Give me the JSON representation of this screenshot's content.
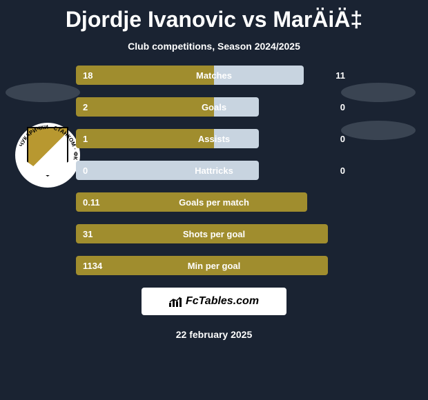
{
  "title": "Djordje Ivanovic vs MarÄiÄ‡",
  "subtitle": "Club competitions, Season 2024/2025",
  "date": "22 february 2025",
  "branding": "FcTables.com",
  "colors": {
    "background": "#1a2332",
    "bar_primary": "#a08d2e",
    "bar_secondary": "#c8d4e0",
    "text": "#ffffff",
    "ellipse": "#3a4452"
  },
  "bars": [
    {
      "label": "Matches",
      "left_value": "18",
      "right_value": "11",
      "left_width": 200,
      "right_width": 130,
      "left_color": "#a08d2e",
      "right_color": "#c8d4e0"
    },
    {
      "label": "Goals",
      "left_value": "2",
      "right_value": "0",
      "left_width": 200,
      "right_width": 65,
      "left_color": "#a08d2e",
      "right_color": "#c8d4e0"
    },
    {
      "label": "Assists",
      "left_value": "1",
      "right_value": "0",
      "left_width": 200,
      "right_width": 65,
      "left_color": "#a08d2e",
      "right_color": "#c8d4e0"
    },
    {
      "label": "Hattricks",
      "left_value": "0",
      "right_value": "0",
      "left_width": 200,
      "right_width": 65,
      "left_color": "#c8d4e0",
      "right_color": "#c8d4e0"
    },
    {
      "label": "Goals per match",
      "left_value": "0.11",
      "right_value": "",
      "left_width": 200,
      "right_width": 135,
      "left_color": "#a08d2e",
      "right_color": "#a08d2e"
    },
    {
      "label": "Shots per goal",
      "left_value": "31",
      "right_value": "",
      "left_width": 200,
      "right_width": 165,
      "left_color": "#a08d2e",
      "right_color": "#a08d2e"
    },
    {
      "label": "Min per goal",
      "left_value": "1134",
      "right_value": "",
      "left_width": 200,
      "right_width": 165,
      "left_color": "#a08d2e",
      "right_color": "#a08d2e"
    }
  ]
}
